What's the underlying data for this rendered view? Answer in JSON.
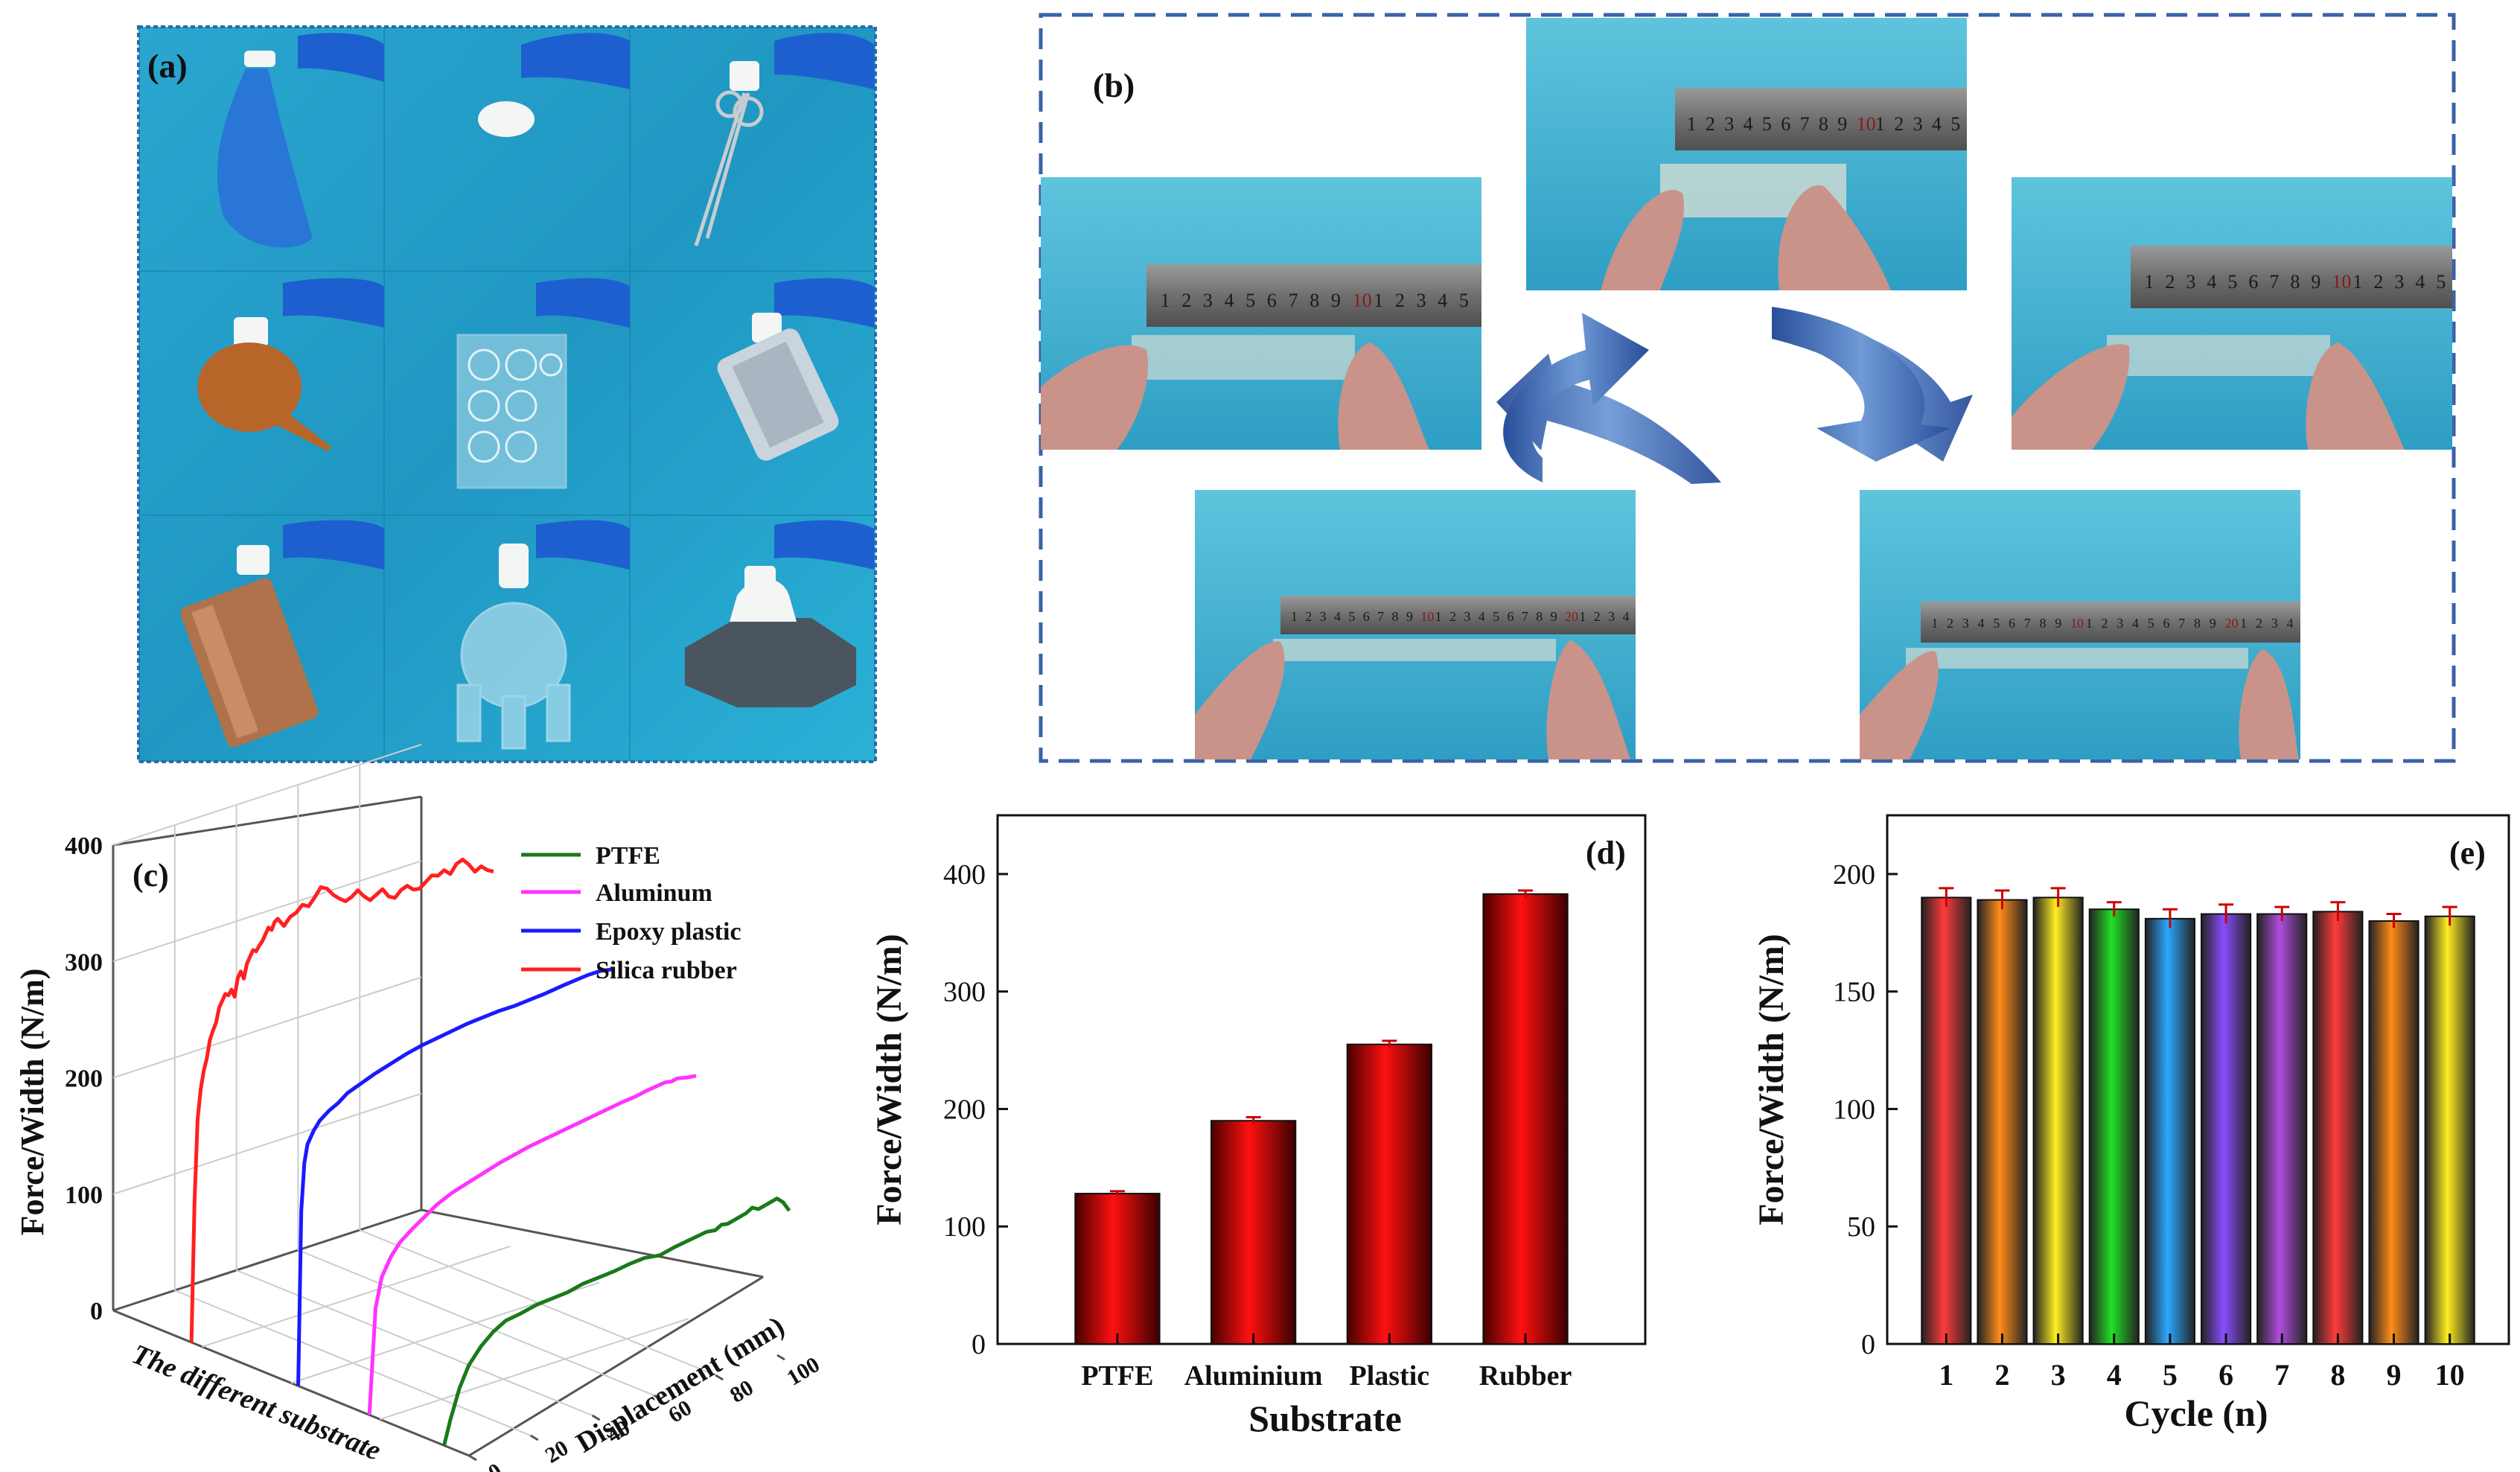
{
  "panels": {
    "a": {
      "label": "(a)",
      "tiles": 9
    },
    "b": {
      "label": "(b)"
    },
    "c": {
      "label": "(c)"
    },
    "d": {
      "label": "(d)"
    },
    "e": {
      "label": "(e)"
    }
  },
  "ruler_ticks": [
    "1",
    "2",
    "3",
    "4",
    "5",
    "6",
    "7",
    "8",
    "9",
    "10",
    "1",
    "2",
    "3",
    "4",
    "5"
  ],
  "ruler_ticks_long": [
    "1",
    "2",
    "3",
    "4",
    "5",
    "6",
    "7",
    "8",
    "9",
    "10",
    "1",
    "2",
    "3",
    "4",
    "5",
    "6",
    "7",
    "8",
    "9",
    "20",
    "1",
    "2",
    "3",
    "4"
  ],
  "colors": {
    "ptfe": "#1a7a1a",
    "aluminum": "#ff33ff",
    "epoxy": "#1a1aff",
    "silica": "#ff2020",
    "panel_a_frame": "#3b78b8",
    "panel_b_frame": "#3a62a8",
    "bar_red": "#e00000",
    "cycle_bars": [
      "#ff3b3b",
      "#ff8c1a",
      "#ffee22",
      "#22e022",
      "#2aa8ff",
      "#8a4dff",
      "#b04ddd",
      "#ff3b3b",
      "#ff8c1a",
      "#ffee22"
    ]
  },
  "chart_data": [
    {
      "id": "c",
      "type": "line",
      "projection": "3d",
      "ylabel": "Force/Width (N/m)",
      "xlabel": "The different substrate",
      "zlabel": "Displacement (mm)",
      "ylim": [
        0,
        400
      ],
      "yticks": [
        "0",
        "100",
        "200",
        "300",
        "400"
      ],
      "zlim": [
        0,
        100
      ],
      "zticks": [
        "0",
        "20",
        "40",
        "60",
        "80",
        "100"
      ],
      "legend": {
        "position": "top-right",
        "entries": [
          "PTFE",
          "Aluminum",
          "Epoxy plastic",
          "Silica rubber"
        ]
      },
      "series": [
        {
          "name": "PTFE",
          "x": [
            0,
            2,
            5,
            8,
            12,
            16,
            20,
            25,
            30,
            35,
            40,
            45,
            50,
            55,
            60,
            65,
            70,
            75,
            80,
            85,
            88,
            90,
            92,
            95,
            98,
            100,
            102,
            105,
            108,
            110,
            112
          ],
          "y": [
            0,
            20,
            45,
            62,
            75,
            84,
            90,
            92,
            95,
            96,
            97,
            100,
            101,
            102,
            104,
            105,
            103,
            106,
            108,
            110,
            109,
            112,
            111,
            113,
            115,
            118,
            115,
            117,
            119,
            114,
            105
          ]
        },
        {
          "name": "Aluminum",
          "x": [
            0,
            2,
            4,
            7,
            10,
            14,
            18,
            22,
            27,
            32,
            37,
            42,
            47,
            52,
            57,
            62,
            67,
            72,
            77,
            82,
            86,
            88,
            90,
            93,
            96,
            98,
            100,
            103,
            106
          ],
          "y": [
            0,
            90,
            115,
            130,
            140,
            148,
            155,
            162,
            168,
            172,
            176,
            180,
            183,
            186,
            188,
            190,
            192,
            194,
            196,
            198,
            199,
            200,
            201,
            202,
            203,
            202,
            203,
            201,
            200
          ]
        },
        {
          "name": "Epoxy plastic",
          "x": [
            0,
            1,
            2,
            3,
            5,
            7,
            10,
            13,
            16,
            20,
            25,
            30,
            35,
            40,
            45,
            50,
            55,
            60,
            65,
            70,
            75,
            80,
            83,
            86,
            90,
            94,
            98,
            100,
            102
          ],
          "y": [
            0,
            150,
            190,
            205,
            215,
            222,
            228,
            232,
            238,
            242,
            247,
            251,
            255,
            258,
            260,
            262,
            264,
            265,
            266,
            266,
            267,
            268,
            269,
            270,
            271,
            272,
            272,
            271,
            270
          ]
        },
        {
          "name": "Silica rubber",
          "x": [
            0,
            1,
            2,
            3,
            4,
            5,
            6,
            7,
            8,
            9,
            10,
            11,
            12,
            13,
            14,
            15,
            16,
            17,
            18,
            19,
            20,
            21,
            22,
            23,
            24,
            25,
            26,
            27,
            28,
            29,
            30,
            32,
            34,
            36,
            38,
            40,
            42,
            44,
            46,
            48,
            50,
            52,
            54,
            56,
            58,
            60,
            62,
            64,
            66,
            68,
            70,
            72,
            74,
            76,
            78,
            80,
            82,
            84,
            86,
            88,
            90,
            92,
            94,
            96,
            98
          ],
          "y": [
            0,
            120,
            190,
            215,
            230,
            240,
            255,
            262,
            268,
            280,
            285,
            290,
            288,
            292,
            285,
            300,
            305,
            298,
            310,
            315,
            320,
            318,
            322,
            325,
            330,
            335,
            332,
            338,
            340,
            336,
            332,
            338,
            340,
            345,
            342,
            348,
            355,
            352,
            345,
            340,
            336,
            338,
            342,
            335,
            330,
            333,
            336,
            328,
            325,
            330,
            332,
            327,
            326,
            330,
            334,
            332,
            335,
            330,
            337,
            339,
            333,
            325,
            328,
            323,
            320
          ]
        }
      ]
    },
    {
      "id": "d",
      "type": "bar",
      "categories": [
        "PTFE",
        "Aluminium",
        "Plastic",
        "Rubber"
      ],
      "values": [
        128,
        190,
        255,
        383
      ],
      "errors": [
        2,
        3,
        3,
        3
      ],
      "xlabel": "Substrate",
      "ylabel": "Force/Width (N/m)",
      "ylim": [
        0,
        450
      ],
      "yticks": [
        "0",
        "100",
        "200",
        "300",
        "400"
      ]
    },
    {
      "id": "e",
      "type": "bar",
      "categories": [
        "1",
        "2",
        "3",
        "4",
        "5",
        "6",
        "7",
        "8",
        "9",
        "10"
      ],
      "values": [
        190,
        189,
        190,
        185,
        181,
        183,
        183,
        184,
        180,
        182
      ],
      "errors": [
        4,
        4,
        4,
        3,
        4,
        4,
        3,
        4,
        3,
        4
      ],
      "xlabel": "Cycle (n)",
      "ylabel": "Force/Width (N/m)",
      "ylim": [
        0,
        225
      ],
      "yticks": [
        "0",
        "50",
        "100",
        "150",
        "200"
      ]
    }
  ]
}
